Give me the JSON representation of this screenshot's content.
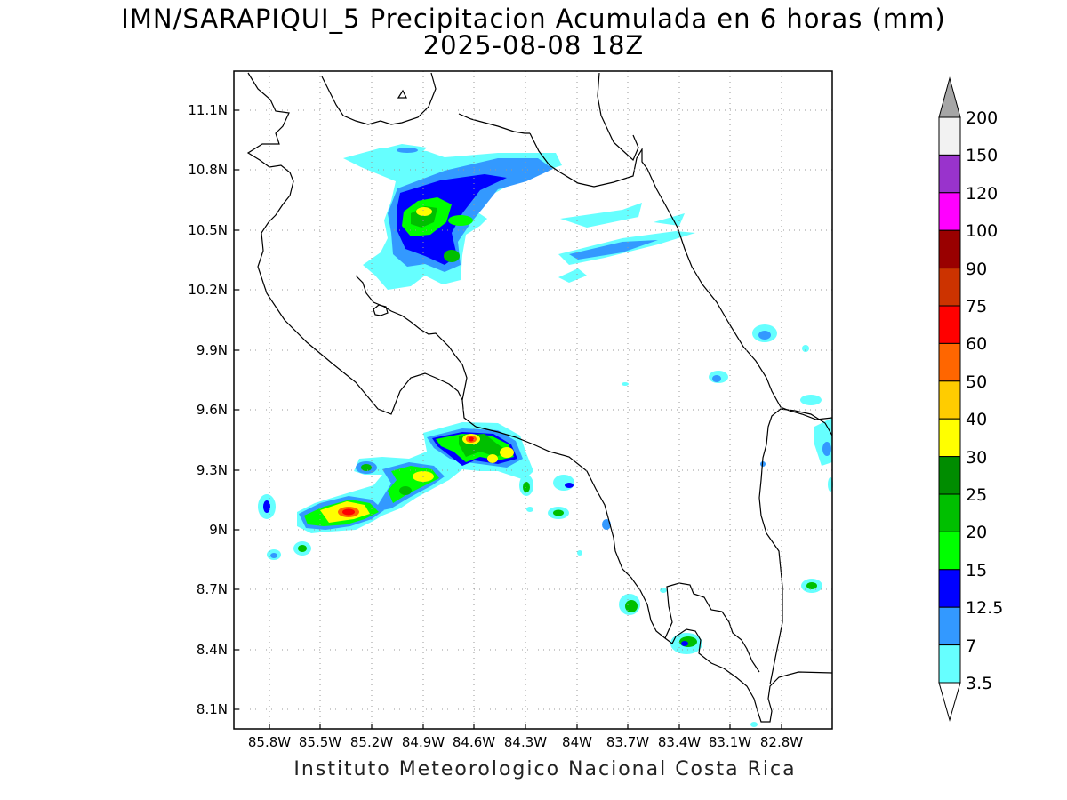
{
  "title": {
    "line1": "IMN/SARAPIQUI_5 Precipitacion Acumulada en 6 horas (mm)",
    "line2": "2025-08-08 18Z"
  },
  "credit": "Instituto Meteorologico Nacional Costa Rica",
  "axes": {
    "lat_ticks": [
      "11.1N",
      "10.8N",
      "10.5N",
      "10.2N",
      "9.9N",
      "9.6N",
      "9.3N",
      "9N",
      "8.7N",
      "8.4N",
      "8.1N"
    ],
    "lon_ticks": [
      "85.8W",
      "85.5W",
      "85.2W",
      "84.9W",
      "84.6W",
      "84.3W",
      "84W",
      "83.7W",
      "83.4W",
      "83.1W",
      "82.8W"
    ],
    "lat_range": [
      8.0,
      11.3
    ],
    "lon_range": [
      -86.05,
      -82.55
    ],
    "grid": "dotted"
  },
  "colorbar": {
    "labels": [
      "200",
      "150",
      "120",
      "100",
      "90",
      "75",
      "60",
      "50",
      "40",
      "30",
      "25",
      "20",
      "15",
      "12.5",
      "7",
      "3.5"
    ],
    "colors": {
      "top_triangle": "#a6a6a6",
      "150-200": "#f2f2f2",
      "120-150": "#9933cc",
      "100-120": "#ff00ff",
      "90-100": "#990000",
      "75-90": "#cc3300",
      "60-75": "#ff0000",
      "50-60": "#ff6600",
      "40-50": "#ffcc00",
      "30-40": "#ffff00",
      "25-30": "#008c00",
      "20-25": "#00bf00",
      "15-20": "#00ff00",
      "12.5-15": "#0000ff",
      "7-12.5": "#3399ff",
      "3.5-7": "#66ffff",
      "bottom_triangle": "#ffffff"
    }
  }
}
